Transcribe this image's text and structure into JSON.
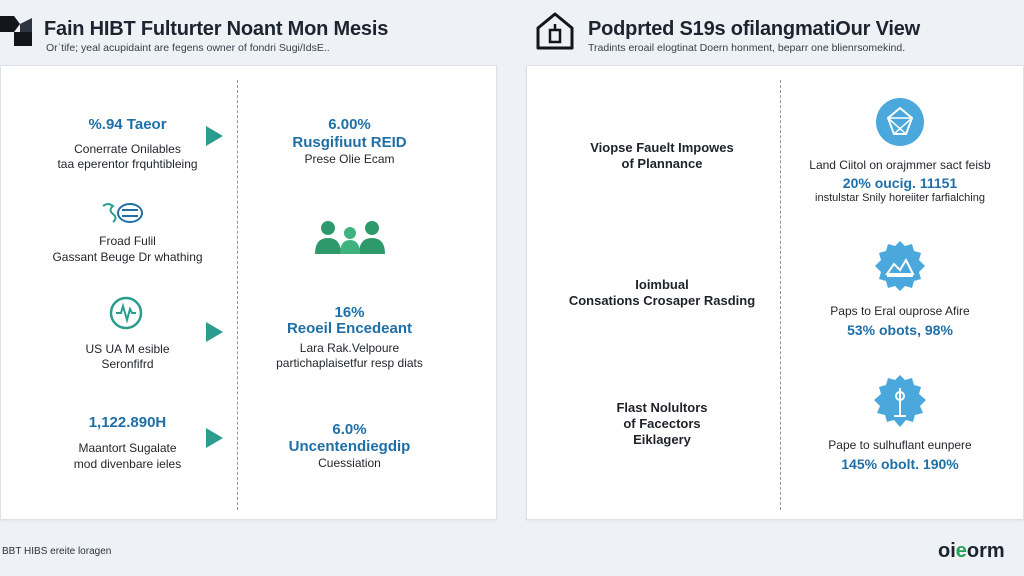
{
  "header_left": {
    "title": "Fain HIBT Fulturter Noant Mon Mesis",
    "subtitle": "Orˈtife; yeal acupidaint are fegens owner of fondri Sugi/IdsE.."
  },
  "header_right": {
    "title": "Podprted S19s ofilangmatiOur View",
    "subtitle": "Tradints eroail elogtinat Doern honment, beparr one blienrsomekind."
  },
  "left_panel": {
    "col1": [
      {
        "value": "%.94 Taeor",
        "desc1": "Conerrate Onilables",
        "desc2": "taa eperentor frquhtibleing"
      },
      {
        "value": "",
        "desc1": "Froad Fulil",
        "desc2": "Gassant Beuge Dr whathing"
      },
      {
        "value": "",
        "desc1": "US UA M esible",
        "desc2": "Seronfifrd"
      },
      {
        "value": "1,122.890H",
        "desc1": "Maantort Sugalate",
        "desc2": "mod divenbare ieles"
      }
    ],
    "col2": [
      {
        "value": "6.00%",
        "label": "Rusgifiuut REID",
        "desc": "Prese Olie Ecam"
      },
      {
        "value": "16%",
        "label": "Reoeil Encedeant",
        "desc1": "Lara Rak.Velpoure",
        "desc2": "partichaplaisetfur resp diats"
      },
      {
        "value": "6.0%",
        "label": "Uncentendiegdip",
        "desc": "Cuessiation"
      }
    ]
  },
  "right_panel": {
    "col1": [
      {
        "line1": "Viopse Fauelt Impowes",
        "line2": "of Plannance"
      },
      {
        "line1": "Ioimbual",
        "line2": "Consations Crosaper Rasding"
      },
      {
        "line1": "Flast Nolultors",
        "line2": "of Facectors",
        "line3": "Eiklagery"
      }
    ],
    "col2": [
      {
        "title": "Land Ciitol on orajmmer sact feisb",
        "stat": "20% oucig. 11151",
        "desc": "instulstar Snily horeiiter farfialching"
      },
      {
        "title": "Paps to Eral ouprose Afire",
        "stat": "53% obots, 98%"
      },
      {
        "title": "Pape to sulhuflant eunpere",
        "stat": "145% obolt. 190%"
      }
    ]
  },
  "footer": {
    "left_text": "BBT HIBS ereite loragen",
    "brand_prefix": "oi",
    "brand_o": "e",
    "brand_suffix": "orm"
  },
  "colors": {
    "accent_blue": "#1f6fa7",
    "accent_teal": "#2a9d8f",
    "badge_blue": "#4aa8dc"
  }
}
